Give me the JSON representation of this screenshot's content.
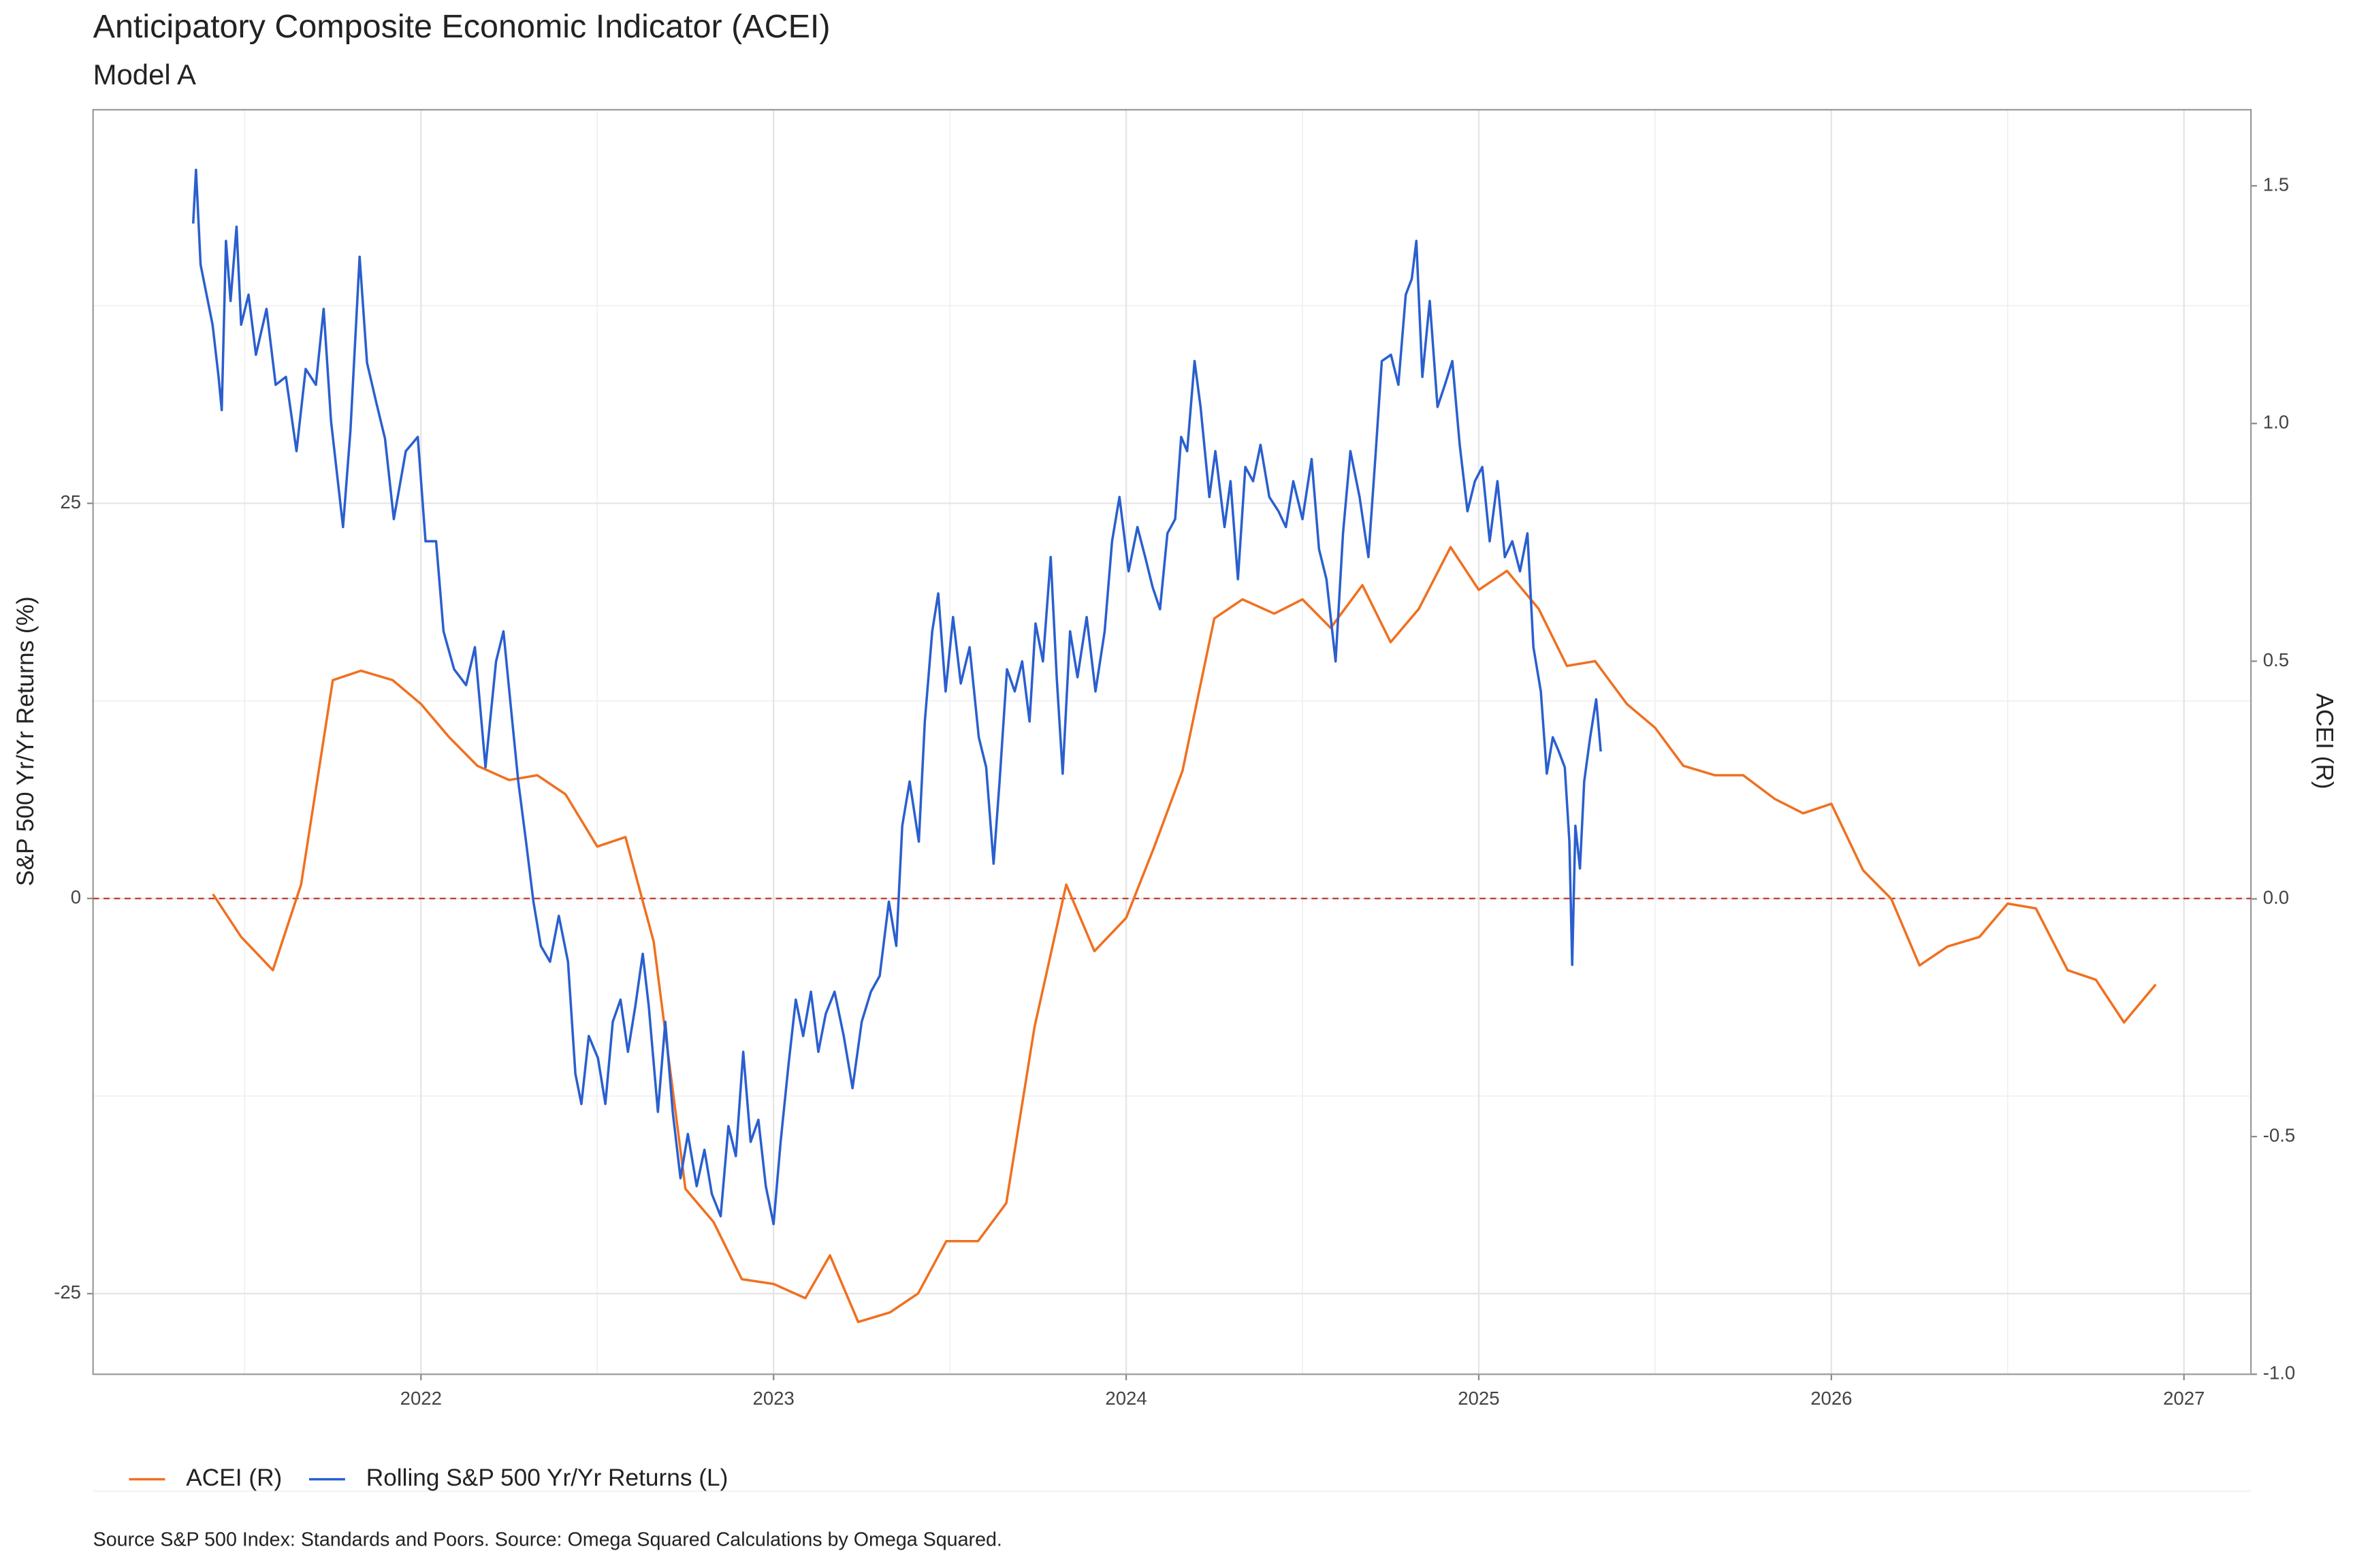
{
  "chart_data": {
    "type": "line",
    "title": "Anticipatory Composite Economic Indicator (ACEI)",
    "subtitle": "Model A",
    "ylabel": "S&P 500 Yr/Yr Returns (%)",
    "y2label": "ACEI (R)",
    "caption": "Source S&P 500 Index: Standards and Poors. Source:  Omega Squared Calculations by Omega Squared.",
    "xlim": [
      2021.07,
      2027.19
    ],
    "xticks": [
      2022,
      2023,
      2024,
      2025,
      2026,
      2027
    ],
    "ylim": [
      -30.1,
      49.9
    ],
    "yticks": [
      -25,
      0,
      25
    ],
    "y2lim": [
      -1.0,
      1.66
    ],
    "y2ticks": [
      {
        "value": -1,
        "label": "-1.0"
      },
      -0.5,
      {
        "value": 0,
        "label": "0.0"
      },
      0.5,
      {
        "value": 1,
        "label": "1.0"
      },
      1.5
    ],
    "grid": true,
    "minor_grid": true,
    "hline": 0,
    "hline_color": "#c0392b",
    "legend": "bottom-left",
    "series": [
      {
        "name": "ACEI (R)",
        "color": "#f07020",
        "axis": "y2",
        "x": [
          2021.41,
          2021.49,
          2021.58,
          2021.66,
          2021.75,
          2021.83,
          2021.92,
          2022.0,
          2022.08,
          2022.16,
          2022.25,
          2022.33,
          2022.41,
          2022.5,
          2022.58,
          2022.66,
          2022.75,
          2022.83,
          2022.91,
          2023.0,
          2023.09,
          2023.16,
          2023.24,
          2023.33,
          2023.41,
          2023.49,
          2023.58,
          2023.66,
          2023.74,
          2023.83,
          2023.91,
          2024.0,
          2024.08,
          2024.16,
          2024.25,
          2024.33,
          2024.42,
          2024.5,
          2024.58,
          2024.67,
          2024.75,
          2024.83,
          2024.92,
          2025.0,
          2025.08,
          2025.17,
          2025.25,
          2025.33,
          2025.42,
          2025.5,
          2025.58,
          2025.67,
          2025.75,
          2025.84,
          2025.92,
          2026.0,
          2026.09,
          2026.17,
          2026.25,
          2026.33,
          2026.42,
          2026.5,
          2026.58,
          2026.67,
          2026.75,
          2026.83,
          2026.92
        ],
        "values": [
          0.01,
          -0.08,
          -0.15,
          0.03,
          0.46,
          0.48,
          0.46,
          0.41,
          0.34,
          0.28,
          0.25,
          0.26,
          0.22,
          0.11,
          0.13,
          -0.09,
          -0.61,
          -0.68,
          -0.8,
          -0.81,
          -0.84,
          -0.75,
          -0.89,
          -0.87,
          -0.83,
          -0.72,
          -0.72,
          -0.64,
          -0.27,
          0.03,
          -0.11,
          -0.04,
          0.11,
          0.27,
          0.59,
          0.63,
          0.6,
          0.63,
          0.57,
          0.66,
          0.54,
          0.61,
          0.74,
          0.65,
          0.69,
          0.61,
          0.49,
          0.5,
          0.41,
          0.36,
          0.28,
          0.26,
          0.26,
          0.21,
          0.18,
          0.2,
          0.06,
          0.0,
          -0.14,
          -0.1,
          -0.08,
          -0.01,
          -0.02,
          -0.15,
          -0.17,
          -0.26,
          -0.18
        ]
      },
      {
        "name": "Rolling S&P 500 Yr/Yr Returns (L)",
        "color": "#2a5fcf",
        "x": [
          2021.354,
          2021.362,
          2021.375,
          2021.392,
          2021.409,
          2021.426,
          2021.435,
          2021.447,
          2021.46,
          2021.477,
          2021.49,
          2021.511,
          2021.532,
          2021.562,
          2021.588,
          2021.617,
          2021.647,
          2021.673,
          2021.702,
          2021.724,
          2021.745,
          2021.779,
          2021.8,
          2021.826,
          2021.847,
          2021.872,
          2021.898,
          2021.923,
          2021.957,
          2021.991,
          2022.013,
          2022.043,
          2022.064,
          2022.094,
          2022.128,
          2022.153,
          2022.183,
          2022.213,
          2022.234,
          2022.255,
          2022.276,
          2022.298,
          2022.319,
          2022.34,
          2022.366,
          2022.391,
          2022.417,
          2022.438,
          2022.455,
          2022.476,
          2022.502,
          2022.523,
          2022.544,
          2022.566,
          2022.587,
          2022.608,
          2022.629,
          2022.646,
          2022.672,
          2022.693,
          2022.714,
          2022.736,
          2022.757,
          2022.782,
          2022.804,
          2022.825,
          2022.85,
          2022.872,
          2022.893,
          2022.914,
          2022.935,
          2022.957,
          2022.978,
          2023.0,
          2023.02,
          2023.042,
          2023.063,
          2023.084,
          2023.106,
          2023.127,
          2023.148,
          2023.173,
          2023.199,
          2023.224,
          2023.25,
          2023.276,
          2023.301,
          2023.327,
          2023.348,
          2023.365,
          2023.386,
          2023.412,
          2023.429,
          2023.45,
          2023.467,
          2023.488,
          2023.509,
          2023.531,
          2023.556,
          2023.582,
          2023.603,
          2023.624,
          2023.641,
          2023.662,
          2023.684,
          2023.705,
          2023.726,
          2023.743,
          2023.764,
          2023.786,
          2023.803,
          2023.82,
          2023.841,
          2023.862,
          2023.888,
          2023.913,
          2023.939,
          2023.96,
          2023.981,
          2024.007,
          2024.032,
          2024.054,
          2024.075,
          2024.096,
          2024.117,
          2024.139,
          2024.156,
          2024.173,
          2024.194,
          2024.211,
          2024.236,
          2024.253,
          2024.279,
          2024.296,
          2024.317,
          2024.338,
          2024.36,
          2024.381,
          2024.406,
          2024.432,
          2024.453,
          2024.474,
          2024.5,
          2024.526,
          2024.547,
          2024.568,
          2024.594,
          2024.615,
          2024.636,
          2024.662,
          2024.687,
          2024.708,
          2024.725,
          2024.751,
          2024.772,
          2024.793,
          2024.81,
          2024.823,
          2024.84,
          2024.861,
          2024.883,
          2024.904,
          2024.925,
          2024.946,
          2024.968,
          2024.989,
          2025.01,
          2025.031,
          2025.053,
          2025.074,
          2025.095,
          2025.117,
          2025.138,
          2025.155,
          2025.176,
          2025.193,
          2025.21,
          2025.227,
          2025.244,
          2025.257,
          2025.265,
          2025.274,
          2025.287,
          2025.299,
          2025.316,
          2025.333,
          2025.346
        ],
        "values": [
          42.7,
          46.1,
          40.1,
          38.2,
          36.3,
          33.0,
          30.9,
          41.6,
          37.8,
          42.5,
          36.3,
          38.2,
          34.4,
          37.3,
          32.5,
          33.0,
          28.3,
          33.5,
          32.5,
          37.3,
          30.2,
          23.5,
          29.6,
          40.6,
          33.9,
          31.5,
          29.1,
          24.0,
          28.3,
          29.2,
          22.6,
          22.6,
          16.9,
          14.5,
          13.5,
          15.9,
          8.3,
          15.0,
          16.9,
          12.1,
          7.4,
          3.6,
          -0.2,
          -3.0,
          -4.0,
          -1.1,
          -4.0,
          -11.1,
          -13.0,
          -8.7,
          -10.1,
          -13.0,
          -7.8,
          -6.4,
          -9.7,
          -6.8,
          -3.5,
          -6.8,
          -13.5,
          -7.8,
          -13.5,
          -17.7,
          -14.9,
          -18.2,
          -15.9,
          -18.7,
          -20.1,
          -14.4,
          -16.3,
          -9.7,
          -15.4,
          -14.0,
          -18.2,
          -20.6,
          -15.4,
          -10.6,
          -6.4,
          -8.7,
          -5.9,
          -9.7,
          -7.3,
          -5.9,
          -8.7,
          -12.0,
          -7.8,
          -5.9,
          -4.9,
          -0.2,
          -3.0,
          4.6,
          7.4,
          3.6,
          11.2,
          16.9,
          19.3,
          13.1,
          17.8,
          13.6,
          15.9,
          10.2,
          8.3,
          2.2,
          7.4,
          14.5,
          13.1,
          15.0,
          11.2,
          17.4,
          15.0,
          21.6,
          14.0,
          7.9,
          16.9,
          14.0,
          17.8,
          13.1,
          16.9,
          22.6,
          25.4,
          20.7,
          23.5,
          21.6,
          19.7,
          18.3,
          23.1,
          24.0,
          29.2,
          28.3,
          34.0,
          31.1,
          25.4,
          28.3,
          23.5,
          26.4,
          20.2,
          27.3,
          26.4,
          28.7,
          25.4,
          24.5,
          23.5,
          26.4,
          24.0,
          27.8,
          22.1,
          20.2,
          15.0,
          23.1,
          28.3,
          25.4,
          21.6,
          28.3,
          34.0,
          34.4,
          32.5,
          38.2,
          39.2,
          41.6,
          33.0,
          37.8,
          31.1,
          32.5,
          34.0,
          28.7,
          24.5,
          26.4,
          27.3,
          22.6,
          26.4,
          21.6,
          22.6,
          20.7,
          23.1,
          15.9,
          13.1,
          7.9,
          10.2,
          9.3,
          8.3,
          3.6,
          -4.2,
          4.6,
          1.9,
          7.4,
          10.2,
          12.6,
          9.3
        ]
      }
    ]
  }
}
